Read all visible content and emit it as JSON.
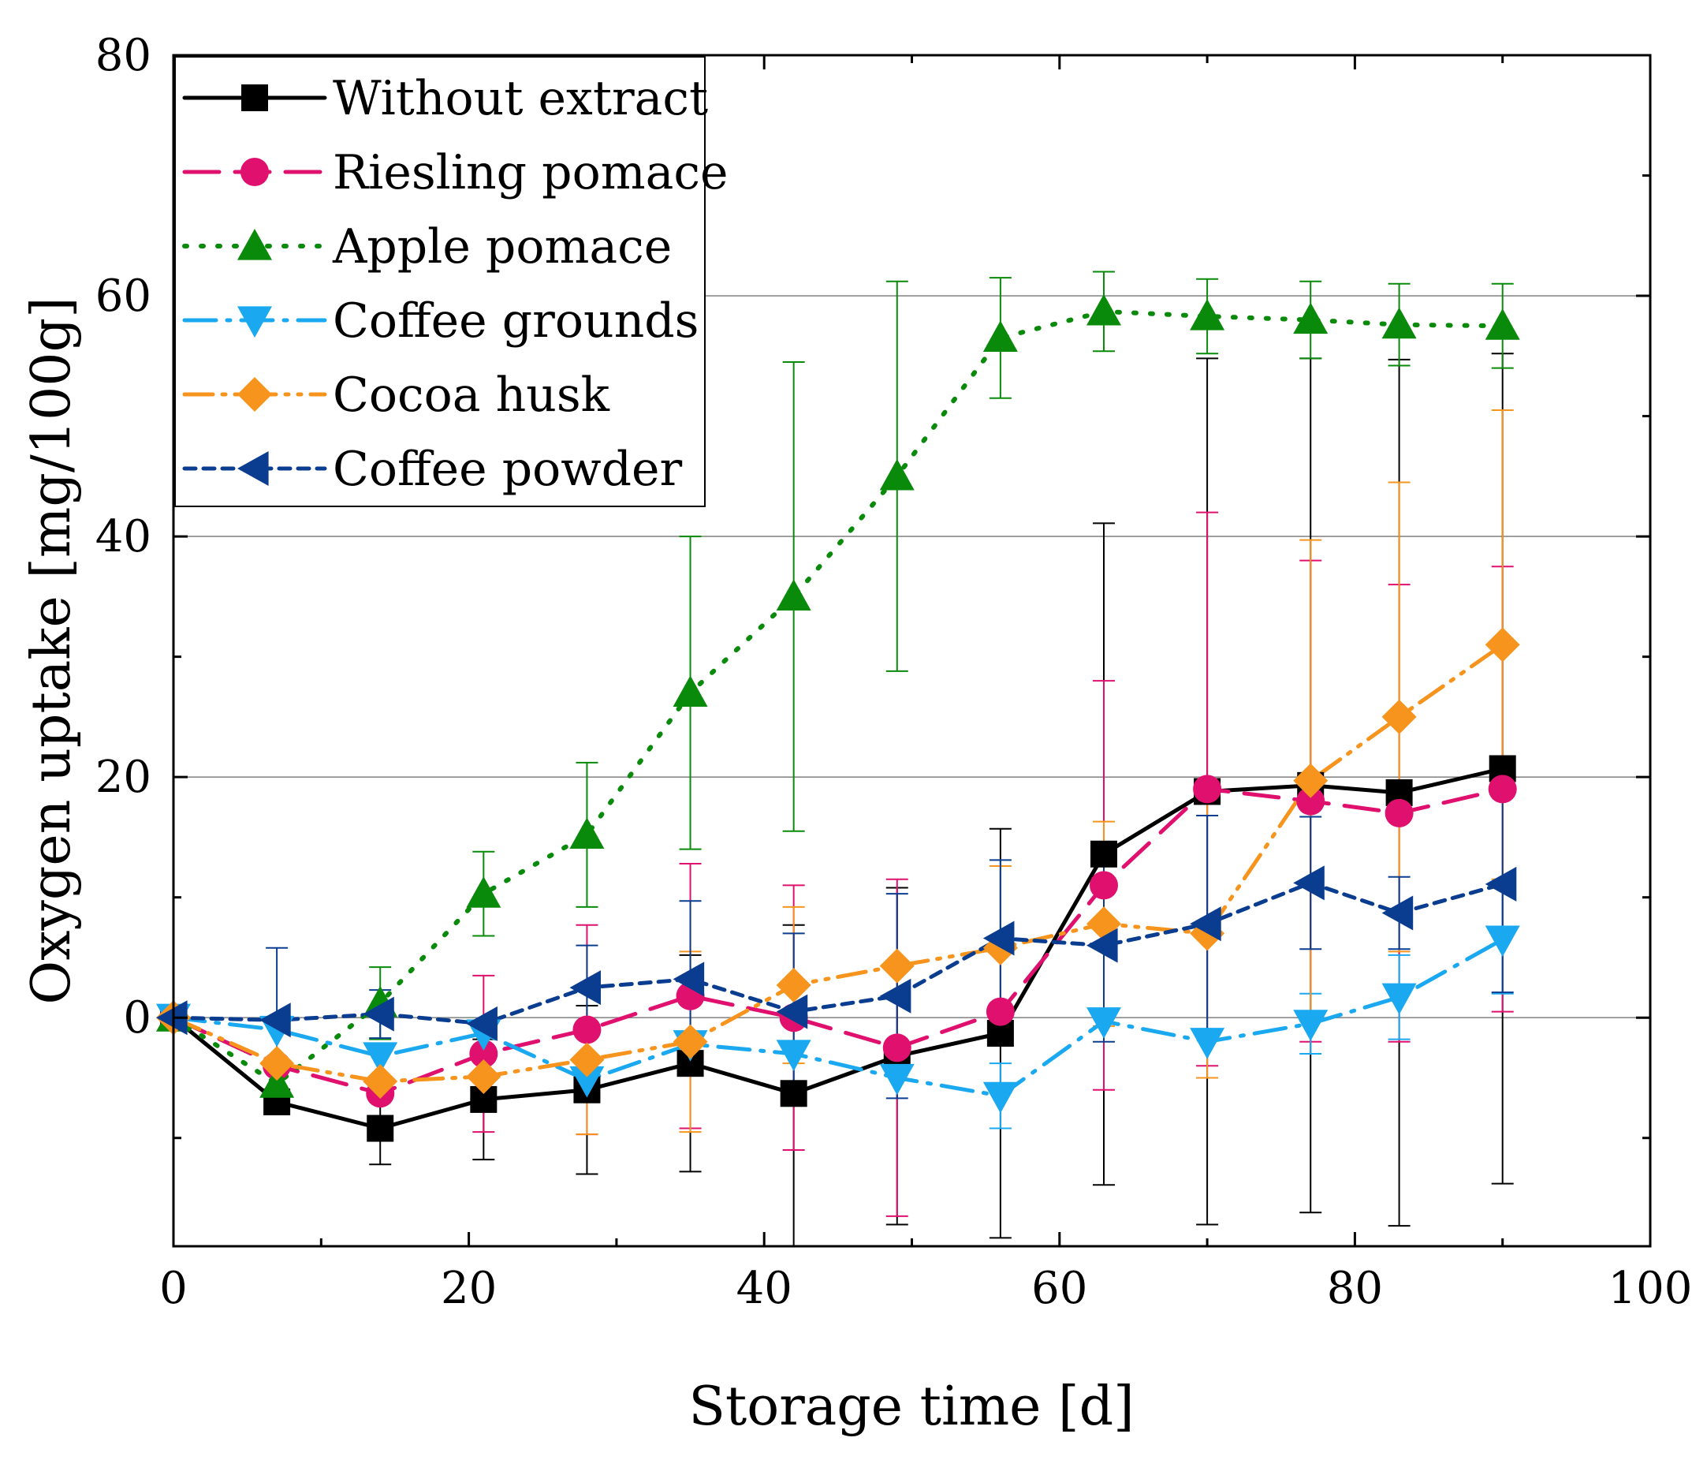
{
  "chart_data": {
    "type": "line",
    "xlabel": "Storage time [d]",
    "ylabel": "Oxygen uptake [mg/100g]",
    "xlim": [
      0,
      100
    ],
    "ylim": [
      -19,
      80
    ],
    "x_ticks": [
      0,
      20,
      40,
      60,
      80,
      100
    ],
    "y_ticks": [
      0,
      20,
      40,
      60,
      80
    ],
    "x_tick_labels": [
      "0",
      "20",
      "40",
      "60",
      "80",
      "100"
    ],
    "y_tick_labels": [
      "0",
      "20",
      "40",
      "60",
      "80"
    ],
    "grid": "horizontal",
    "legend_position": "top-left",
    "series": [
      {
        "name": "Without extract",
        "color": "#000000",
        "dash": "solid",
        "marker": "square",
        "x": [
          0,
          7,
          14,
          21,
          28,
          35,
          42,
          49,
          56,
          63,
          70,
          77,
          83,
          90
        ],
        "y": [
          0,
          -7.0,
          -9.2,
          -6.8,
          -6.0,
          -3.8,
          -6.3,
          -3.2,
          -1.3,
          13.6,
          18.8,
          19.3,
          18.7,
          20.7
        ],
        "err": [
          0,
          0,
          3.0,
          5.0,
          7.0,
          9.0,
          14.0,
          14.0,
          17.0,
          27.5,
          36.0,
          35.5,
          36.0,
          34.5
        ]
      },
      {
        "name": "Riesling pomace",
        "color": "#e0106e",
        "dash": "long-dash",
        "marker": "circle",
        "x": [
          0,
          7,
          14,
          21,
          28,
          35,
          42,
          49,
          56,
          63,
          70,
          77,
          83,
          90
        ],
        "y": [
          0,
          -4.0,
          -6.3,
          -3.0,
          -1.0,
          1.8,
          0,
          -2.5,
          0.5,
          11.0,
          19.0,
          18.0,
          17.0,
          19.0
        ],
        "err": [
          0,
          0,
          0,
          6.5,
          8.7,
          11.0,
          11.0,
          14.0,
          0,
          17.0,
          23.0,
          20.0,
          19.0,
          18.5
        ]
      },
      {
        "name": "Apple pomace",
        "color": "#0a8a0a",
        "dash": "dotted",
        "marker": "triangle-up",
        "x": [
          0,
          7,
          14,
          21,
          28,
          35,
          42,
          49,
          56,
          63,
          70,
          77,
          83,
          90
        ],
        "y": [
          0,
          -5.5,
          1.2,
          10.3,
          15.2,
          27.0,
          35.0,
          45.0,
          56.5,
          58.7,
          58.3,
          58.0,
          57.6,
          57.5
        ],
        "err": [
          0,
          0,
          3.0,
          3.5,
          6.0,
          13.0,
          19.5,
          16.2,
          5.0,
          3.3,
          3.1,
          3.2,
          3.4,
          3.5
        ]
      },
      {
        "name": "Coffee grounds",
        "color": "#1aa8f0",
        "dash": "dash-dot",
        "marker": "triangle-down",
        "x": [
          0,
          7,
          14,
          21,
          28,
          35,
          42,
          49,
          56,
          63,
          70,
          77,
          83,
          90
        ],
        "y": [
          0,
          -1.0,
          -3.2,
          -1.3,
          -5.2,
          -2.2,
          -3.0,
          -5.0,
          -6.5,
          -0.3,
          -2.0,
          -0.5,
          1.7,
          6.5
        ],
        "err": [
          0,
          0,
          0,
          0,
          0,
          0,
          0,
          0,
          2.7,
          0,
          0,
          2.5,
          3.5,
          4.5
        ]
      },
      {
        "name": "Cocoa husk",
        "color": "#f7941d",
        "dash": "dash-dot-dot",
        "marker": "diamond",
        "x": [
          0,
          7,
          14,
          21,
          28,
          35,
          42,
          49,
          56,
          63,
          70,
          77,
          83,
          90
        ],
        "y": [
          0,
          -3.8,
          -5.3,
          -4.9,
          -3.5,
          -2.0,
          2.7,
          4.3,
          5.8,
          7.8,
          7.0,
          19.7,
          25.0,
          31.0
        ],
        "err": [
          0,
          0,
          0,
          0,
          6.2,
          7.5,
          6.5,
          0,
          6.8,
          8.5,
          12.0,
          20.0,
          19.5,
          19.5
        ]
      },
      {
        "name": "Coffee powder",
        "color": "#0a3d8f",
        "dash": "short-dash",
        "marker": "triangle-left",
        "x": [
          0,
          7,
          14,
          21,
          28,
          35,
          42,
          49,
          56,
          63,
          70,
          77,
          83,
          90
        ],
        "y": [
          0,
          -0.2,
          0.3,
          -0.5,
          2.5,
          3.2,
          0.5,
          1.8,
          6.6,
          6.0,
          7.8,
          11.2,
          8.7,
          11.1
        ],
        "err": [
          0,
          6.0,
          2.0,
          0,
          3.5,
          6.5,
          6.5,
          8.5,
          6.5,
          8.0,
          9.0,
          5.5,
          3.0,
          9.0
        ]
      }
    ]
  }
}
